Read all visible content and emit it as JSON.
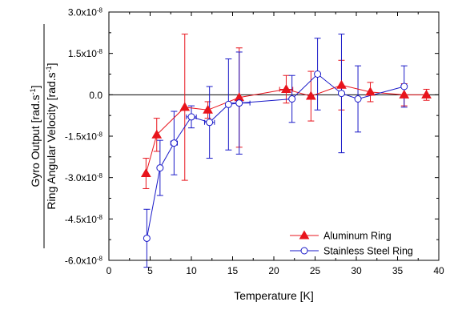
{
  "chart_data": {
    "type": "scatter",
    "xlabel": "Temperature [K]",
    "ylabel_top": "Gyro Output [rad.s",
    "ylabel_bottom": "Ring Angular Velocity [rad.s",
    "ylabel_superscript": "-1",
    "ylabel_close": "]",
    "xlim": [
      0,
      40
    ],
    "ylim": [
      -6e-08,
      3e-08
    ],
    "x_ticks": [
      0,
      5,
      10,
      15,
      20,
      25,
      30,
      35,
      40
    ],
    "x_tick_labels": [
      "0",
      "5",
      "10",
      "15",
      "20",
      "25",
      "30",
      "35",
      "40"
    ],
    "y_ticks": [
      3e-08,
      1.5e-08,
      0.0,
      -1.5e-08,
      -3e-08,
      -4.5e-08,
      -6e-08
    ],
    "y_tick_mantissas": [
      "3.0x10",
      "1.5x10",
      "0.0",
      "-1.5x10",
      "-3.0x10",
      "-4.5x10",
      "-6.0x10"
    ],
    "y_tick_exponents": [
      "-8",
      "-8",
      "",
      "-8",
      "-8",
      "-8",
      "-8"
    ],
    "grid": false,
    "zero_line": true,
    "legend_position": "bottom-right",
    "series": [
      {
        "name": "Aluminum Ring",
        "color": "#e8141c",
        "marker": "filled-triangle",
        "points": [
          {
            "x": 4.5,
            "y": -2.85e-08,
            "yerr": 5.5e-09
          },
          {
            "x": 5.8,
            "y": -1.45e-08,
            "yerr": 6e-09
          },
          {
            "x": 9.2,
            "y": -4.5e-09,
            "yerr": 2.65e-08
          },
          {
            "x": 12.0,
            "y": -5.5e-09,
            "yerr": 3e-09
          },
          {
            "x": 15.8,
            "y": -1e-09,
            "yerr": 1.8e-08
          },
          {
            "x": 21.5,
            "y": 2e-09,
            "yerr": 5e-09,
            "xerr": 0.8
          },
          {
            "x": 24.5,
            "y": -5e-10,
            "yerr": 9e-09
          },
          {
            "x": 28.2,
            "y": 3.5e-09,
            "yerr": 9e-09
          },
          {
            "x": 31.7,
            "y": 1e-09,
            "yerr": 3.5e-09
          },
          {
            "x": 35.8,
            "y": 0.0,
            "yerr": 4e-09
          },
          {
            "x": 38.5,
            "y": 0.0,
            "yerr": 2e-09
          }
        ]
      },
      {
        "name": "Stainless Steel Ring",
        "color": "#1a1ac8",
        "marker": "open-circle",
        "points": [
          {
            "x": 4.6,
            "y": -5.2e-08,
            "yerr": 1.05e-08
          },
          {
            "x": 6.2,
            "y": -2.65e-08,
            "yerr": 1e-08
          },
          {
            "x": 7.9,
            "y": -1.75e-08,
            "yerr": 1.15e-08,
            "xerr": 0.4
          },
          {
            "x": 10.0,
            "y": -8e-09,
            "yerr": 4e-09,
            "xerr": 0.6
          },
          {
            "x": 12.2,
            "y": -1e-08,
            "yerr": 1.3e-08,
            "xerr": 0.6
          },
          {
            "x": 14.5,
            "y": -3.5e-09,
            "yerr": 1.65e-08
          },
          {
            "x": 15.8,
            "y": -3e-09,
            "yerr": 1.85e-08,
            "xerr": 1.3
          },
          {
            "x": 22.2,
            "y": -1.5e-09,
            "yerr": 8.5e-09
          },
          {
            "x": 25.3,
            "y": 7.5e-09,
            "yerr": 1.3e-08
          },
          {
            "x": 28.2,
            "y": 5e-10,
            "yerr": 2.15e-08
          },
          {
            "x": 30.2,
            "y": -1.5e-09,
            "yerr": 1.2e-08
          },
          {
            "x": 35.8,
            "y": 3e-09,
            "yerr": 7.5e-09
          }
        ]
      }
    ]
  }
}
